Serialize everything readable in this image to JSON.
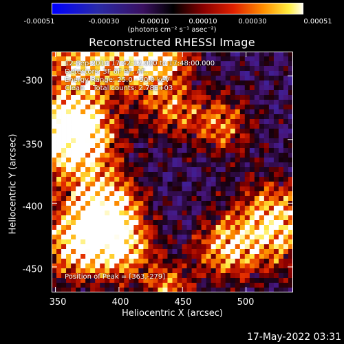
{
  "colorbar": {
    "tick_labels": [
      "-0.00051",
      "-0.00030",
      "-0.00010",
      "0.00010",
      "0.00030",
      "0.00051"
    ],
    "tick_values": [
      -0.00051,
      -0.0003,
      -0.0001,
      0.0001,
      0.0003,
      0.00051
    ],
    "range": [
      -0.00051,
      0.00051
    ],
    "units": "(photons cm⁻² s⁻¹ asec⁻²)"
  },
  "chart_data": {
    "type": "heatmap",
    "title": "Reconstructed RHESSI Image",
    "xlabel": "Heliocentric X (arcsec)",
    "ylabel": "Heliocentric Y (arcsec)",
    "xlim": [
      347,
      537
    ],
    "ylim": [
      -470,
      -281
    ],
    "x_ticks": [
      350,
      400,
      450,
      500
    ],
    "x_tick_labels": [
      "350",
      "400",
      "450",
      "500"
    ],
    "y_ticks": [
      -300,
      -350,
      -400,
      -450
    ],
    "y_tick_labels": [
      "-300",
      "-350",
      "-400",
      "-450"
    ],
    "colormap": "rainbow-like (blue, purple, red, orange, yellow, white)",
    "annotations": {
      "time_range": "12-Sep-2014 17:42:12.000 to 17:48:00.000",
      "detectors": "Detectors: 3F 6F 9F, AF..",
      "energy": "Energy Range: 25.0 - 50.0 keV",
      "method": "Clean    Total counts: 2.78E+03",
      "peak": "Position of Peak = [363,-279]"
    },
    "peak_position": [
      363,
      -279
    ]
  },
  "footer": {
    "timestamp": "17-May-2022 03:31"
  }
}
